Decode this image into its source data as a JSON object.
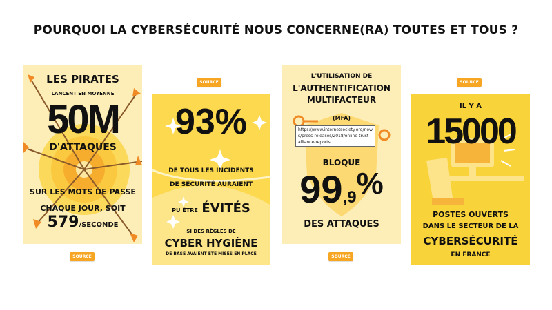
{
  "title": "POURQUOI LA CYBERSÉCURITÉ NOUS CONCERNE(RA) TOUTES ET TOUS ?",
  "colors": {
    "accent": "#f6a623",
    "card_light": "#fdeeb8",
    "card_mid": "#fcd94f",
    "card_bright": "#f9d33a"
  },
  "source_label": "SOURCE",
  "card1": {
    "line1": "LES PIRATES",
    "line2": "LANCENT EN MOYENNE",
    "big": "50M",
    "line3": "D'ATTAQUES",
    "line4": "SUR LES MOTS DE PASSE",
    "line5": "CHAQUE JOUR, SOIT",
    "rate_number": "579",
    "rate_unit": "/SECONDE"
  },
  "card2": {
    "big": "93%",
    "line1": "DE TOUS LES INCIDENTS",
    "line2": "DE SÉCURITÉ AURAIENT",
    "line3_small": "PU ÊTRE",
    "line3_big": "ÉVITÉS",
    "line4": "SI DES RÈGLES DE",
    "line5": "CYBER HYGIÈNE",
    "line6": "DE BASE AVAIENT ÉTÉ MISES EN PLACE"
  },
  "card3": {
    "line1": "L'UTILISATION DE",
    "line2": "L'AUTHENTIFICATION",
    "line3": "MULTIFACTEUR",
    "line4": "(MFA)",
    "line5": "BLOQUE",
    "big_main": "99",
    "big_decimal": ",9",
    "big_pct": "%",
    "line6": "DES ATTAQUES",
    "tooltip_url": "https://www.internetsociety.org/news/press-releases/2018/online-trust-alliance-reports"
  },
  "card4": {
    "line1": "IL Y A",
    "big": "15000",
    "line2": "POSTES OUVERTS",
    "line3": "DANS LE SECTEUR DE LA",
    "line4": "CYBERSÉCURITÉ",
    "line5": "EN FRANCE"
  }
}
